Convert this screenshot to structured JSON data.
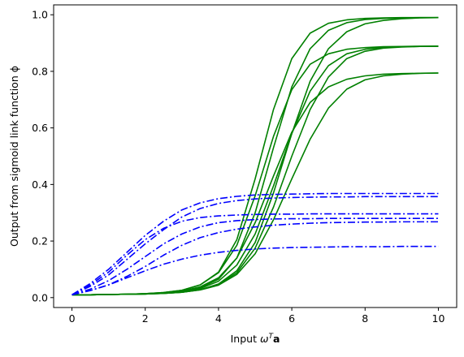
{
  "chart_data": {
    "type": "line",
    "title": "",
    "xlabel_prefix": "Input ",
    "xlabel_omega": "ω",
    "xlabel_sup": "T",
    "xlabel_bold": "a",
    "ylabel": "Output from sigmoid link function ϕ",
    "xlim": [
      -0.5,
      10.5
    ],
    "ylim": [
      -0.035,
      1.035
    ],
    "x_ticks": [
      0,
      2,
      4,
      6,
      8,
      10
    ],
    "x_tick_labels": [
      "0",
      "2",
      "4",
      "6",
      "8",
      "10"
    ],
    "y_ticks": [
      0.0,
      0.2,
      0.4,
      0.6,
      0.8,
      1.0
    ],
    "y_tick_labels": [
      "0.0",
      "0.2",
      "0.4",
      "0.6",
      "0.8",
      "1.0"
    ],
    "grid": false,
    "legend": "none",
    "x": [
      0,
      0.5,
      1,
      1.5,
      2,
      2.5,
      3,
      3.5,
      4,
      4.5,
      5,
      5.5,
      6,
      6.5,
      7,
      7.5,
      8,
      8.5,
      9,
      9.5,
      10
    ],
    "series": [
      {
        "group": "green",
        "color": "#008000",
        "dash": "solid",
        "values": [
          0.01,
          0.01,
          0.011,
          0.012,
          0.014,
          0.018,
          0.026,
          0.045,
          0.09,
          0.205,
          0.42,
          0.665,
          0.845,
          0.935,
          0.97,
          0.982,
          0.987,
          0.989,
          0.99,
          0.99,
          0.99
        ]
      },
      {
        "group": "green",
        "color": "#008000",
        "dash": "solid",
        "values": [
          0.01,
          0.01,
          0.011,
          0.012,
          0.013,
          0.016,
          0.022,
          0.035,
          0.065,
          0.14,
          0.3,
          0.53,
          0.745,
          0.88,
          0.945,
          0.972,
          0.983,
          0.987,
          0.989,
          0.99,
          0.99
        ]
      },
      {
        "group": "green",
        "color": "#008000",
        "dash": "solid",
        "values": [
          0.01,
          0.01,
          0.011,
          0.012,
          0.013,
          0.015,
          0.019,
          0.028,
          0.048,
          0.095,
          0.195,
          0.37,
          0.58,
          0.765,
          0.88,
          0.94,
          0.968,
          0.98,
          0.986,
          0.989,
          0.99
        ]
      },
      {
        "group": "green",
        "color": "#008000",
        "dash": "solid",
        "values": [
          0.01,
          0.01,
          0.011,
          0.012,
          0.014,
          0.018,
          0.026,
          0.045,
          0.088,
          0.185,
          0.36,
          0.57,
          0.735,
          0.825,
          0.862,
          0.878,
          0.884,
          0.887,
          0.888,
          0.889,
          0.889
        ]
      },
      {
        "group": "green",
        "color": "#008000",
        "dash": "solid",
        "values": [
          0.01,
          0.01,
          0.011,
          0.012,
          0.013,
          0.016,
          0.021,
          0.032,
          0.058,
          0.115,
          0.225,
          0.395,
          0.58,
          0.73,
          0.82,
          0.862,
          0.878,
          0.885,
          0.887,
          0.888,
          0.889
        ]
      },
      {
        "group": "green",
        "color": "#008000",
        "dash": "solid",
        "values": [
          0.01,
          0.01,
          0.011,
          0.012,
          0.013,
          0.015,
          0.019,
          0.028,
          0.046,
          0.088,
          0.175,
          0.32,
          0.5,
          0.665,
          0.78,
          0.845,
          0.871,
          0.882,
          0.886,
          0.888,
          0.889
        ]
      },
      {
        "group": "green",
        "color": "#008000",
        "dash": "solid",
        "values": [
          0.01,
          0.01,
          0.011,
          0.012,
          0.014,
          0.017,
          0.023,
          0.038,
          0.07,
          0.14,
          0.265,
          0.43,
          0.585,
          0.69,
          0.745,
          0.772,
          0.784,
          0.79,
          0.792,
          0.793,
          0.794
        ]
      },
      {
        "group": "green",
        "color": "#008000",
        "dash": "solid",
        "values": [
          0.01,
          0.01,
          0.011,
          0.012,
          0.013,
          0.015,
          0.019,
          0.027,
          0.044,
          0.082,
          0.155,
          0.275,
          0.42,
          0.56,
          0.67,
          0.737,
          0.77,
          0.784,
          0.79,
          0.793,
          0.794
        ]
      },
      {
        "group": "blue",
        "color": "#0000ff",
        "dash": "dashdot",
        "values": [
          0.01,
          0.05,
          0.1,
          0.16,
          0.22,
          0.27,
          0.31,
          0.335,
          0.35,
          0.358,
          0.363,
          0.365,
          0.366,
          0.367,
          0.368,
          0.368,
          0.368,
          0.368,
          0.368,
          0.368,
          0.368
        ]
      },
      {
        "group": "blue",
        "color": "#0000ff",
        "dash": "dashdot",
        "values": [
          0.01,
          0.04,
          0.08,
          0.135,
          0.19,
          0.24,
          0.285,
          0.315,
          0.333,
          0.343,
          0.349,
          0.352,
          0.354,
          0.355,
          0.356,
          0.356,
          0.357,
          0.357,
          0.357,
          0.357,
          0.357
        ]
      },
      {
        "group": "blue",
        "color": "#0000ff",
        "dash": "dashdot",
        "values": [
          0.01,
          0.045,
          0.09,
          0.15,
          0.205,
          0.245,
          0.27,
          0.283,
          0.289,
          0.292,
          0.294,
          0.295,
          0.295,
          0.296,
          0.296,
          0.296,
          0.296,
          0.296,
          0.296,
          0.296,
          0.296
        ]
      },
      {
        "group": "blue",
        "color": "#0000ff",
        "dash": "dashdot",
        "values": [
          0.01,
          0.03,
          0.06,
          0.1,
          0.145,
          0.19,
          0.225,
          0.25,
          0.265,
          0.272,
          0.276,
          0.278,
          0.279,
          0.279,
          0.28,
          0.28,
          0.28,
          0.28,
          0.28,
          0.28,
          0.28
        ]
      },
      {
        "group": "blue",
        "color": "#0000ff",
        "dash": "dashdot",
        "values": [
          0.01,
          0.025,
          0.045,
          0.075,
          0.11,
          0.15,
          0.185,
          0.212,
          0.23,
          0.242,
          0.25,
          0.256,
          0.26,
          0.263,
          0.265,
          0.266,
          0.267,
          0.267,
          0.268,
          0.268,
          0.268
        ]
      },
      {
        "group": "blue",
        "color": "#0000ff",
        "dash": "dashdot",
        "values": [
          0.01,
          0.025,
          0.045,
          0.07,
          0.095,
          0.118,
          0.136,
          0.15,
          0.16,
          0.167,
          0.172,
          0.175,
          0.177,
          0.178,
          0.179,
          0.18,
          0.18,
          0.18,
          0.181,
          0.181,
          0.181
        ]
      }
    ]
  }
}
